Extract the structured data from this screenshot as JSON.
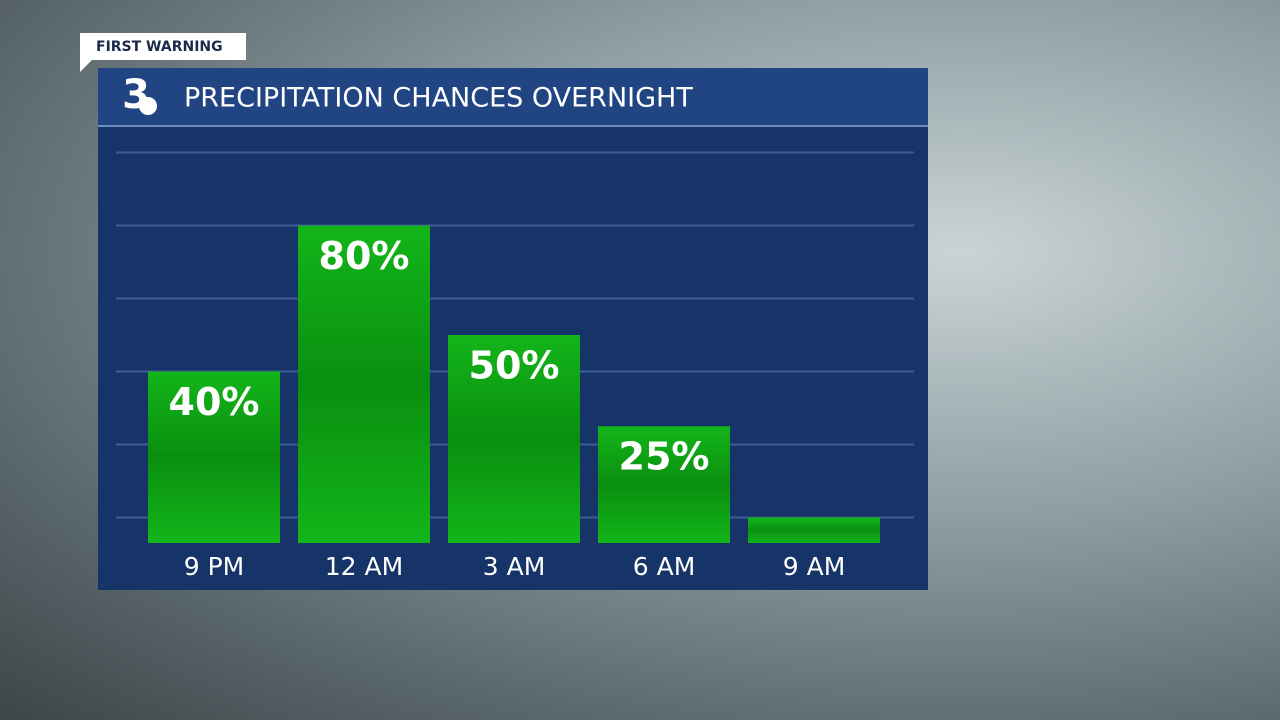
{
  "chart_data": {
    "type": "bar",
    "tag": "FIRST WARNING",
    "logo_text": "3",
    "title": "PRECIPITATION CHANCES OVERNIGHT",
    "categories": [
      "9 PM",
      "12 AM",
      "3 AM",
      "6 AM",
      "9 AM"
    ],
    "values": [
      40,
      80,
      50,
      25,
      0
    ],
    "value_labels": [
      "40%",
      "80%",
      "50%",
      "25%",
      null
    ],
    "color": "#0e9c12",
    "ylim": [
      -7,
      107
    ],
    "grid_lines": [
      0,
      20,
      40,
      60,
      80,
      100
    ],
    "grid": true
  }
}
